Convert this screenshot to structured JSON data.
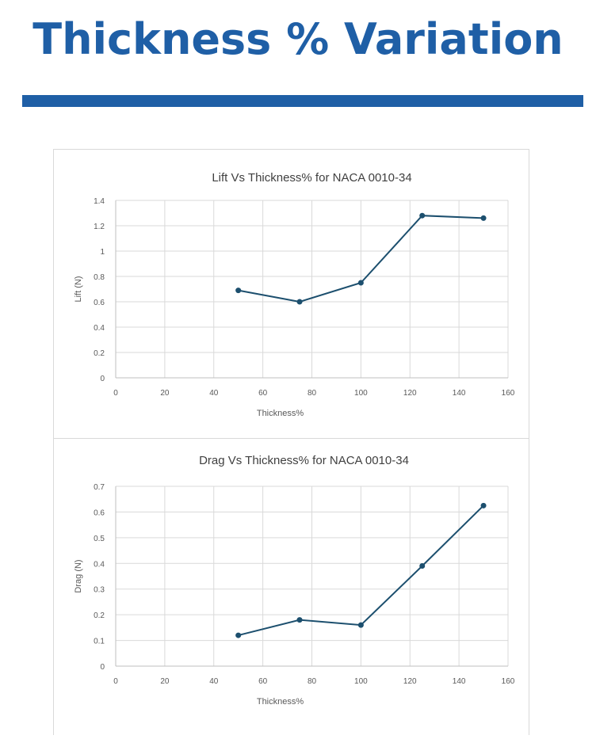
{
  "page": {
    "title": "Thickness % Variation",
    "accent_color": "#1f5fa6",
    "line_color": "#1c4f6e"
  },
  "chart_data": [
    {
      "type": "line",
      "title": "Lift Vs Thickness% for NACA 0010-34",
      "xlabel": "Thickness%",
      "ylabel": "Lift (N)",
      "xlim": [
        0,
        160
      ],
      "ylim": [
        0,
        1.4
      ],
      "xticks": [
        "0",
        "20",
        "40",
        "60",
        "80",
        "100",
        "120",
        "140",
        "160"
      ],
      "yticks": [
        "0",
        "0.2",
        "0.4",
        "0.6",
        "0.8",
        "1",
        "1.2",
        "1.4"
      ],
      "x": [
        50,
        75,
        100,
        125,
        150
      ],
      "values": [
        0.69,
        0.6,
        0.75,
        1.28,
        1.26
      ],
      "grid": true
    },
    {
      "type": "line",
      "title": "Drag Vs Thickness% for NACA 0010-34",
      "xlabel": "Thickness%",
      "ylabel": "Drag (N)",
      "xlim": [
        0,
        160
      ],
      "ylim": [
        0,
        0.7
      ],
      "xticks": [
        "0",
        "20",
        "40",
        "60",
        "80",
        "100",
        "120",
        "140",
        "160"
      ],
      "yticks": [
        "0",
        "0.1",
        "0.2",
        "0.3",
        "0.4",
        "0.5",
        "0.6",
        "0.7"
      ],
      "x": [
        50,
        75,
        100,
        125,
        150
      ],
      "values": [
        0.12,
        0.18,
        0.16,
        0.39,
        0.625
      ],
      "grid": true
    }
  ]
}
